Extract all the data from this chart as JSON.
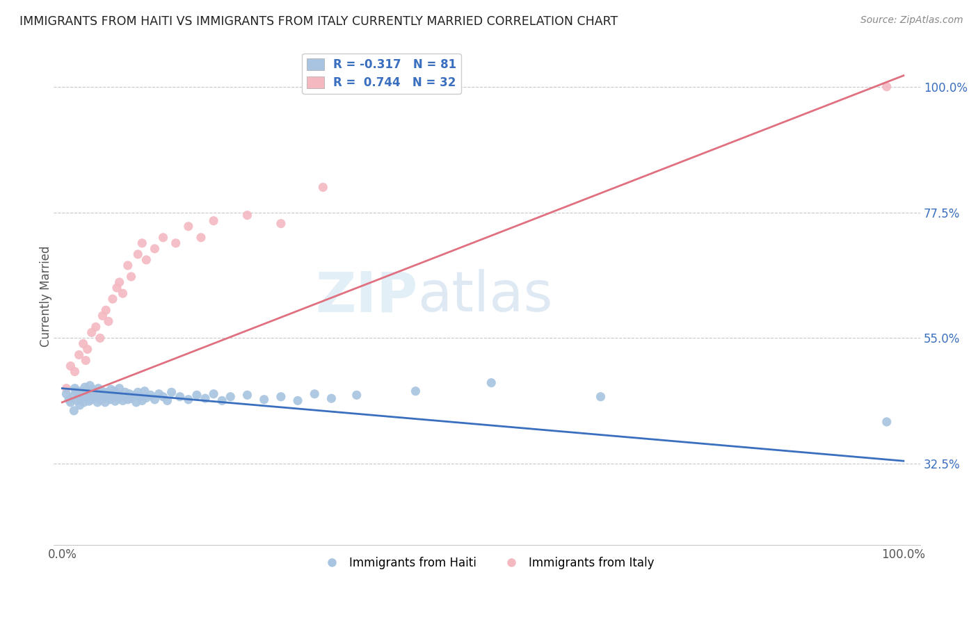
{
  "title": "IMMIGRANTS FROM HAITI VS IMMIGRANTS FROM ITALY CURRENTLY MARRIED CORRELATION CHART",
  "source": "Source: ZipAtlas.com",
  "ylabel": "Currently Married",
  "haiti_color": "#a8c4e0",
  "italy_color": "#f4b8c1",
  "haiti_line_color": "#3a6fbf",
  "italy_line_color": "#e07080",
  "haiti_r": -0.317,
  "haiti_n": 81,
  "italy_r": 0.744,
  "italy_n": 32,
  "background_color": "#ffffff",
  "grid_color": "#c8c8c8",
  "ytick_positions": [
    0.325,
    0.55,
    0.775,
    1.0
  ],
  "ytick_labels": [
    "32.5%",
    "55.0%",
    "77.5%",
    "100.0%"
  ],
  "xlim": [
    -0.01,
    1.02
  ],
  "ylim": [
    0.18,
    1.07
  ],
  "haiti_x": [
    0.005,
    0.008,
    0.01,
    0.012,
    0.014,
    0.015,
    0.016,
    0.018,
    0.02,
    0.021,
    0.022,
    0.023,
    0.025,
    0.026,
    0.027,
    0.028,
    0.03,
    0.031,
    0.032,
    0.033,
    0.034,
    0.035,
    0.036,
    0.038,
    0.04,
    0.041,
    0.042,
    0.043,
    0.045,
    0.046,
    0.047,
    0.048,
    0.05,
    0.051,
    0.053,
    0.055,
    0.057,
    0.058,
    0.06,
    0.062,
    0.063,
    0.065,
    0.067,
    0.068,
    0.07,
    0.072,
    0.075,
    0.078,
    0.08,
    0.082,
    0.085,
    0.088,
    0.09,
    0.092,
    0.095,
    0.098,
    0.1,
    0.105,
    0.11,
    0.115,
    0.12,
    0.125,
    0.13,
    0.14,
    0.15,
    0.16,
    0.17,
    0.18,
    0.19,
    0.2,
    0.22,
    0.24,
    0.26,
    0.28,
    0.3,
    0.32,
    0.35,
    0.42,
    0.51,
    0.64,
    0.98
  ],
  "haiti_y": [
    0.45,
    0.44,
    0.435,
    0.445,
    0.42,
    0.46,
    0.455,
    0.438,
    0.445,
    0.43,
    0.455,
    0.442,
    0.448,
    0.435,
    0.462,
    0.455,
    0.443,
    0.45,
    0.437,
    0.465,
    0.452,
    0.44,
    0.458,
    0.445,
    0.443,
    0.448,
    0.435,
    0.46,
    0.45,
    0.44,
    0.455,
    0.442,
    0.448,
    0.435,
    0.453,
    0.445,
    0.44,
    0.458,
    0.443,
    0.455,
    0.437,
    0.45,
    0.442,
    0.46,
    0.445,
    0.438,
    0.453,
    0.44,
    0.45,
    0.442,
    0.447,
    0.435,
    0.453,
    0.445,
    0.438,
    0.455,
    0.443,
    0.448,
    0.44,
    0.45,
    0.445,
    0.438,
    0.453,
    0.445,
    0.44,
    0.448,
    0.442,
    0.45,
    0.438,
    0.445,
    0.448,
    0.44,
    0.445,
    0.438,
    0.45,
    0.442,
    0.448,
    0.455,
    0.47,
    0.445,
    0.4
  ],
  "italy_x": [
    0.005,
    0.01,
    0.015,
    0.02,
    0.025,
    0.028,
    0.03,
    0.035,
    0.04,
    0.045,
    0.048,
    0.052,
    0.055,
    0.06,
    0.065,
    0.068,
    0.072,
    0.078,
    0.082,
    0.09,
    0.095,
    0.1,
    0.11,
    0.12,
    0.135,
    0.15,
    0.165,
    0.18,
    0.22,
    0.26,
    0.31,
    0.98
  ],
  "italy_y": [
    0.46,
    0.5,
    0.49,
    0.52,
    0.54,
    0.51,
    0.53,
    0.56,
    0.57,
    0.55,
    0.59,
    0.6,
    0.58,
    0.62,
    0.64,
    0.65,
    0.63,
    0.68,
    0.66,
    0.7,
    0.72,
    0.69,
    0.71,
    0.73,
    0.72,
    0.75,
    0.73,
    0.76,
    0.77,
    0.755,
    0.82,
    1.0
  ],
  "haiti_line_x0": 0.0,
  "haiti_line_x1": 1.0,
  "haiti_line_y0": 0.46,
  "haiti_line_y1": 0.33,
  "italy_line_x0": 0.0,
  "italy_line_x1": 1.0,
  "italy_line_y0": 0.435,
  "italy_line_y1": 1.02
}
